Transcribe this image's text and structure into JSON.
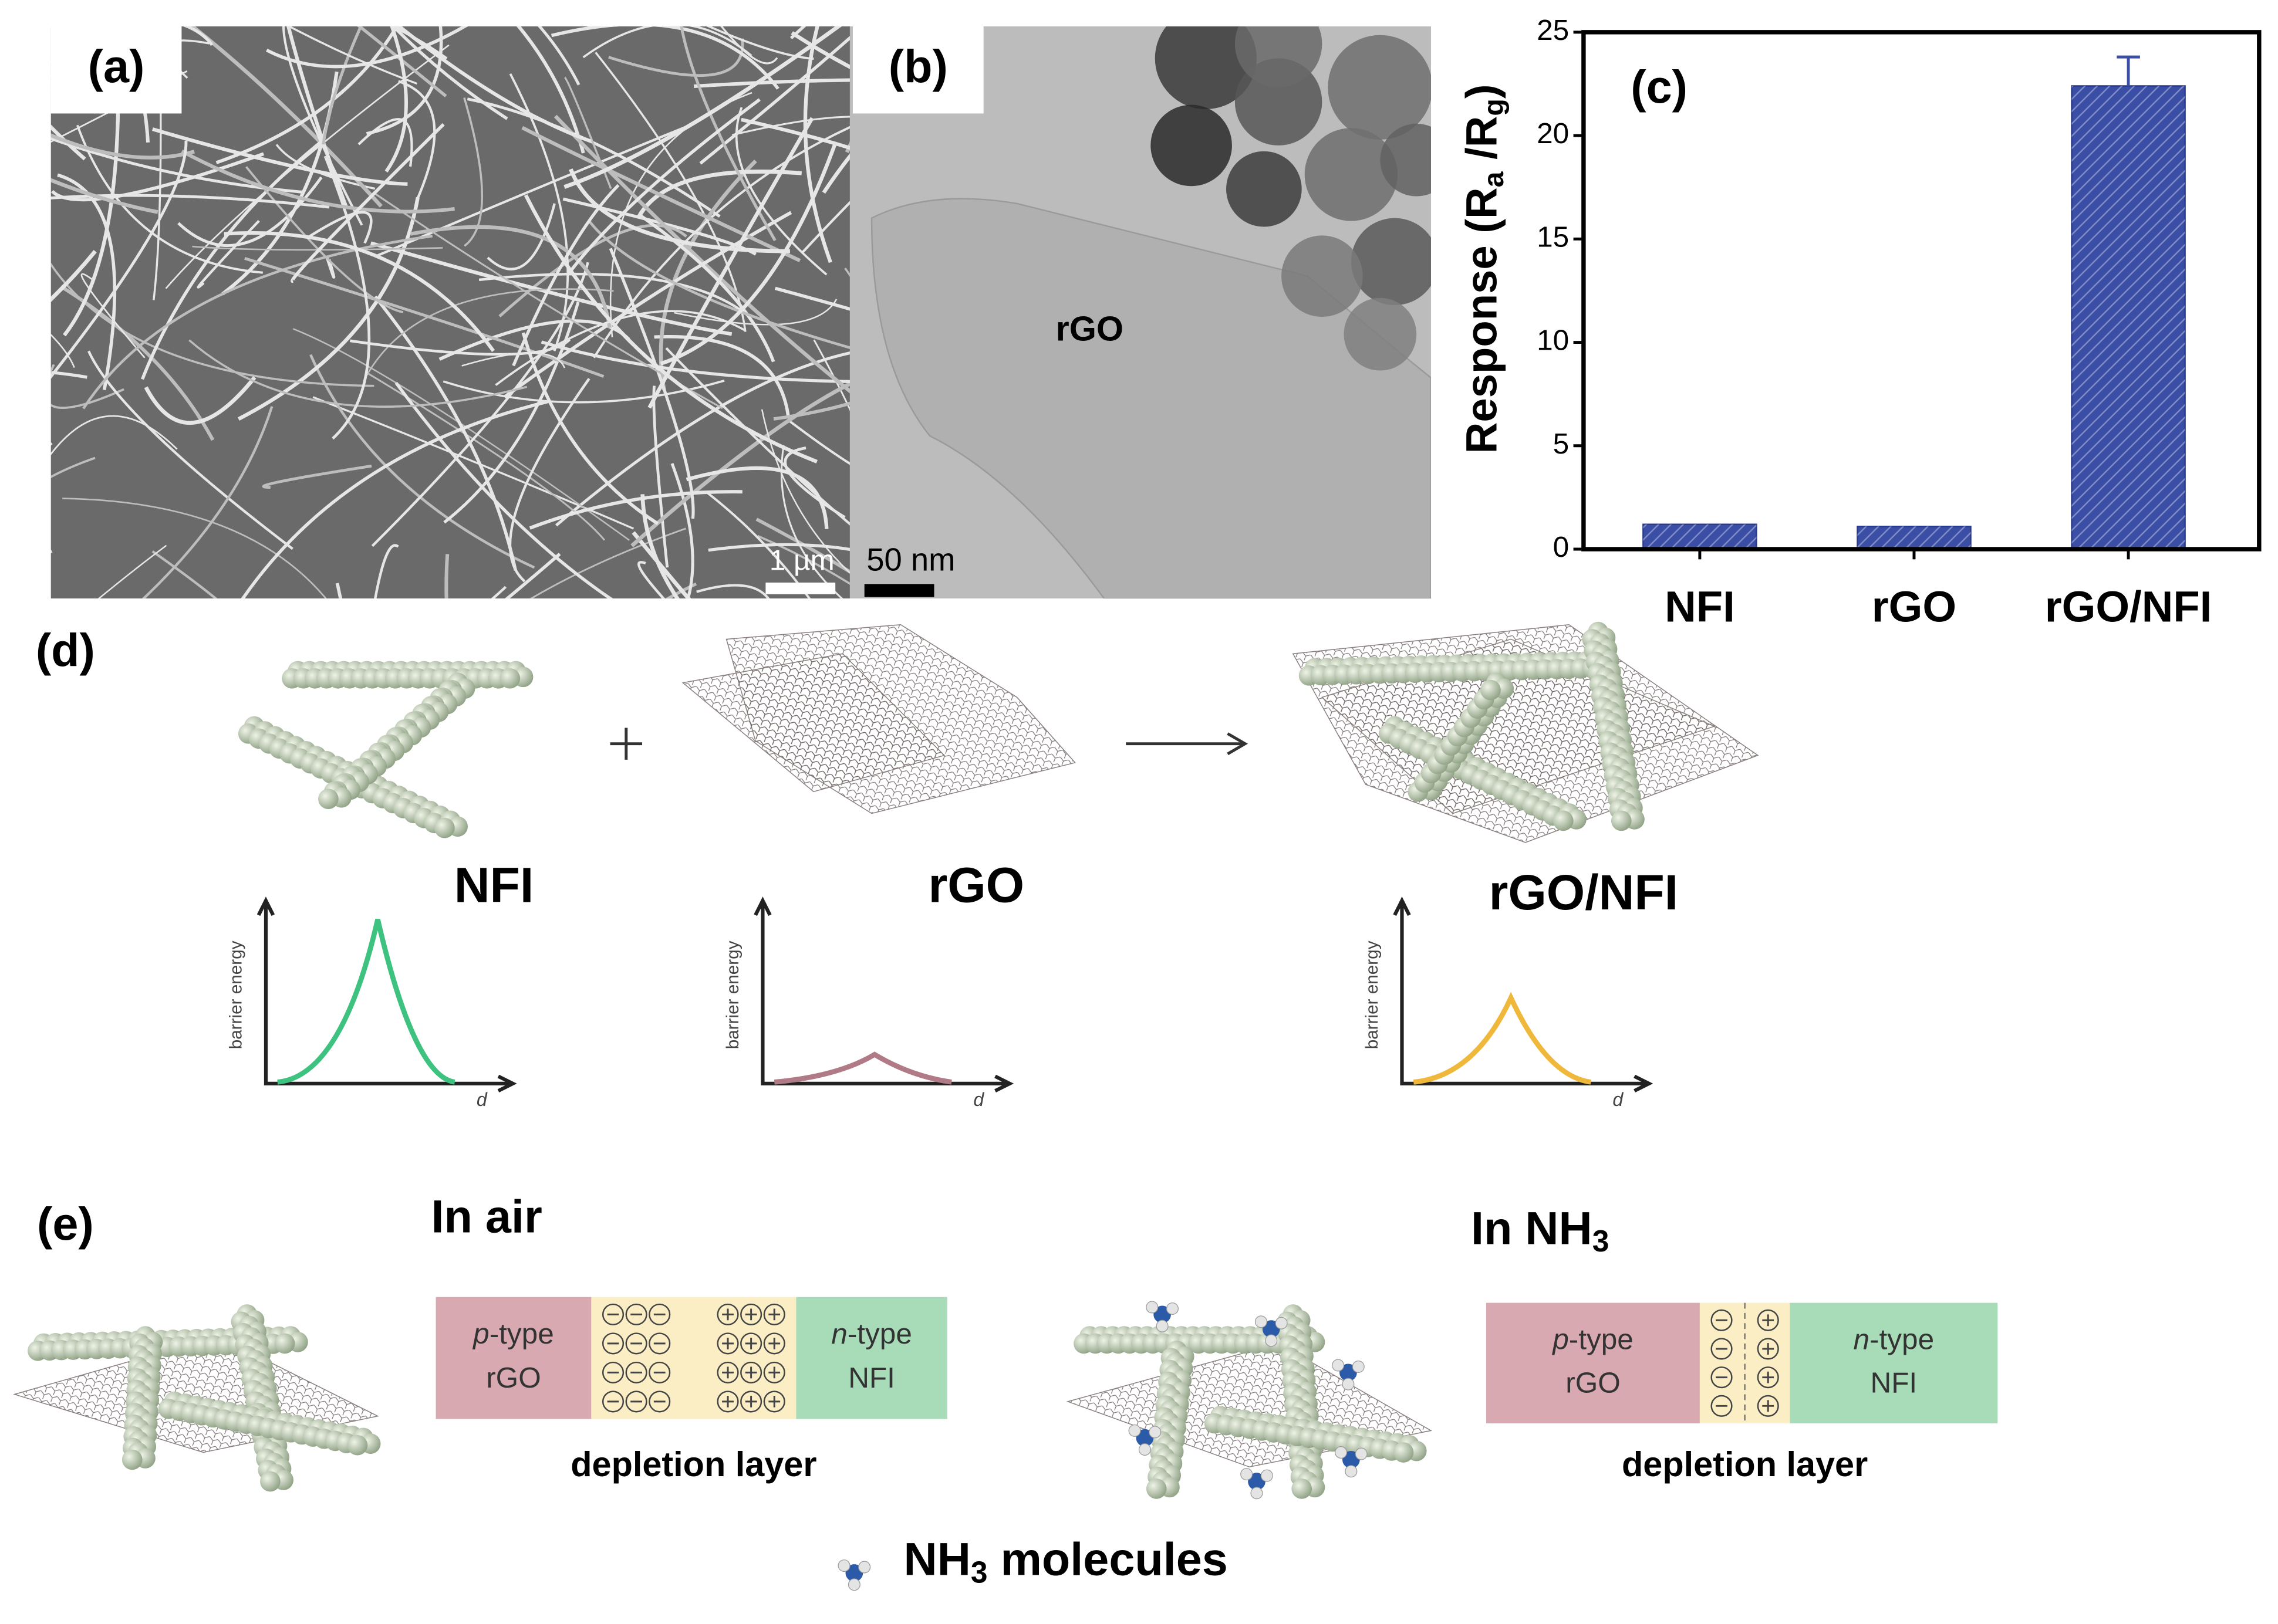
{
  "panels": {
    "a": {
      "label": "(a)",
      "scale_bar": "1 µm"
    },
    "b": {
      "label": "(b)",
      "text": "rGO",
      "scale_bar": "50 nm"
    },
    "d": {
      "label": "(d)",
      "items": [
        "NFI",
        "rGO",
        "rGO/NFI"
      ],
      "plot_y_label": "barrier energy",
      "plot_x_label": "d"
    },
    "e": {
      "label": "(e)",
      "in_air": "In air",
      "in_nh3": [
        "In NH",
        "3"
      ],
      "p_type": [
        "p",
        "-type"
      ],
      "p_material": "rGO",
      "n_type": [
        "n",
        "-type"
      ],
      "n_material": "NFI",
      "depletion": "depletion layer",
      "legend": [
        "NH",
        "3",
        " molecules"
      ]
    }
  },
  "chart_data": {
    "type": "bar",
    "label": "(c)",
    "y_label": [
      "Response (R",
      "a",
      " /R",
      "g",
      ")"
    ],
    "categories": [
      "NFI",
      "rGO",
      "rGO/NFI"
    ],
    "values": [
      1.2,
      1.1,
      22.4
    ],
    "errors": [
      null,
      null,
      1.4
    ],
    "color": "#3b4ea6",
    "ylim": [
      0,
      25
    ],
    "yticks": [
      0,
      5,
      10,
      15,
      20,
      25
    ]
  }
}
